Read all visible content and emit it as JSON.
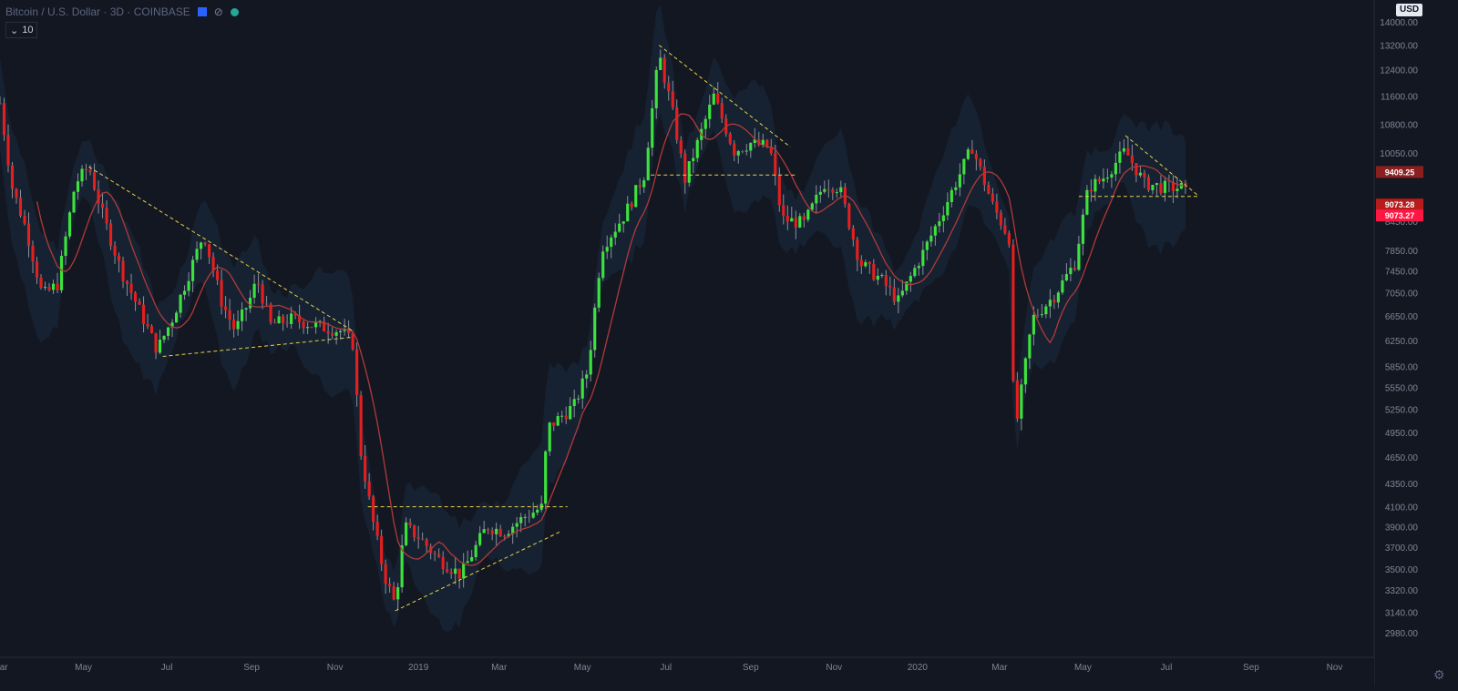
{
  "header": {
    "title": "Bitcoin / U.S. Dollar · 3D · COINBASE",
    "indicator_value": "10",
    "currency": "USD"
  },
  "colors": {
    "background": "#131722",
    "band": "#172433",
    "up": "#3ce33c",
    "down": "#e31f1f",
    "ma": "#b03a3a",
    "trendline": "#e6d24a",
    "axis_text": "#7f8596"
  },
  "chart_data": {
    "type": "candlestick",
    "title": "Bitcoin / U.S. Dollar · 3D · COINBASE",
    "y_scale": "log",
    "ylim": [
      2800,
      14800
    ],
    "y_ticks": [
      "14000.00",
      "13200.00",
      "12400.00",
      "11600.00",
      "10800.00",
      "10050.00",
      "9550.00",
      "8450.00",
      "7850.00",
      "7450.00",
      "7050.00",
      "6650.00",
      "6250.00",
      "5850.00",
      "5550.00",
      "5250.00",
      "4950.00",
      "4650.00",
      "4350.00",
      "4100.00",
      "3900.00",
      "3700.00",
      "3500.00",
      "3320.00",
      "3140.00",
      "2980.00"
    ],
    "x_labels": [
      {
        "label": "Mar",
        "date": "2018-03"
      },
      {
        "label": "May",
        "date": "2018-05"
      },
      {
        "label": "Jul",
        "date": "2018-07"
      },
      {
        "label": "Sep",
        "date": "2018-09"
      },
      {
        "label": "Nov",
        "date": "2018-11"
      },
      {
        "label": "2019",
        "date": "2019-01"
      },
      {
        "label": "Mar",
        "date": "2019-03"
      },
      {
        "label": "May",
        "date": "2019-05"
      },
      {
        "label": "Jul",
        "date": "2019-07"
      },
      {
        "label": "Sep",
        "date": "2019-09"
      },
      {
        "label": "Nov",
        "date": "2019-11"
      },
      {
        "label": "2020",
        "date": "2020-01"
      },
      {
        "label": "Mar",
        "date": "2020-03"
      },
      {
        "label": "May",
        "date": "2020-05"
      },
      {
        "label": "Jul",
        "date": "2020-07"
      },
      {
        "label": "Sep",
        "date": "2020-09"
      },
      {
        "label": "Nov",
        "date": "2020-11"
      }
    ],
    "x_range": [
      "2018-03-01",
      "2020-11-30"
    ],
    "close_path": [
      [
        "2018-03-01",
        11400
      ],
      [
        "2018-03-10",
        9200
      ],
      [
        "2018-03-20",
        8300
      ],
      [
        "2018-04-01",
        7000
      ],
      [
        "2018-04-12",
        7200
      ],
      [
        "2018-04-25",
        9300
      ],
      [
        "2018-05-05",
        9700
      ],
      [
        "2018-05-15",
        8600
      ],
      [
        "2018-05-28",
        7500
      ],
      [
        "2018-06-10",
        6800
      ],
      [
        "2018-06-24",
        6100
      ],
      [
        "2018-07-05",
        6600
      ],
      [
        "2018-07-20",
        7600
      ],
      [
        "2018-07-28",
        8200
      ],
      [
        "2018-08-10",
        6900
      ],
      [
        "2018-08-20",
        6400
      ],
      [
        "2018-09-01",
        7000
      ],
      [
        "2018-09-05",
        7300
      ],
      [
        "2018-09-15",
        6500
      ],
      [
        "2018-10-01",
        6600
      ],
      [
        "2018-10-15",
        6500
      ],
      [
        "2018-11-05",
        6400
      ],
      [
        "2018-11-14",
        6200
      ],
      [
        "2018-11-20",
        4700
      ],
      [
        "2018-11-28",
        4000
      ],
      [
        "2018-12-07",
        3450
      ],
      [
        "2018-12-15",
        3200
      ],
      [
        "2018-12-22",
        3900
      ],
      [
        "2019-01-01",
        3800
      ],
      [
        "2019-01-15",
        3600
      ],
      [
        "2019-02-01",
        3450
      ],
      [
        "2019-02-20",
        3900
      ],
      [
        "2019-03-05",
        3850
      ],
      [
        "2019-03-20",
        4000
      ],
      [
        "2019-04-02",
        4100
      ],
      [
        "2019-04-05",
        5000
      ],
      [
        "2019-04-25",
        5300
      ],
      [
        "2019-05-05",
        5800
      ],
      [
        "2019-05-15",
        7900
      ],
      [
        "2019-06-01",
        8600
      ],
      [
        "2019-06-15",
        9500
      ],
      [
        "2019-06-26",
        12900
      ],
      [
        "2019-07-05",
        11300
      ],
      [
        "2019-07-15",
        9400
      ],
      [
        "2019-08-05",
        11600
      ],
      [
        "2019-08-20",
        10100
      ],
      [
        "2019-09-01",
        10300
      ],
      [
        "2019-09-15",
        10200
      ],
      [
        "2019-09-24",
        8500
      ],
      [
        "2019-10-10",
        8400
      ],
      [
        "2019-10-25",
        9300
      ],
      [
        "2019-11-05",
        9200
      ],
      [
        "2019-11-20",
        7600
      ],
      [
        "2019-12-05",
        7300
      ],
      [
        "2019-12-18",
        6900
      ],
      [
        "2020-01-05",
        7800
      ],
      [
        "2020-01-20",
        8700
      ],
      [
        "2020-02-10",
        10200
      ],
      [
        "2020-02-25",
        8800
      ],
      [
        "2020-03-08",
        8100
      ],
      [
        "2020-03-12",
        4900
      ],
      [
        "2020-03-25",
        6600
      ],
      [
        "2020-04-10",
        7000
      ],
      [
        "2020-04-25",
        7600
      ],
      [
        "2020-05-05",
        9200
      ],
      [
        "2020-05-15",
        9400
      ],
      [
        "2020-06-01",
        10100
      ],
      [
        "2020-06-15",
        9300
      ],
      [
        "2020-07-01",
        9200
      ],
      [
        "2020-07-12",
        9200
      ],
      [
        "2020-07-16",
        9100
      ]
    ],
    "ma_period": 10,
    "trendlines": [
      {
        "from": [
          "2018-05-05",
          9700
        ],
        "to": [
          "2018-11-14",
          6400
        ]
      },
      {
        "from": [
          "2018-06-28",
          6000
        ],
        "to": [
          "2018-11-14",
          6300
        ]
      },
      {
        "from": [
          "2018-12-15",
          3150
        ],
        "to": [
          "2019-04-15",
          3850
        ]
      },
      {
        "from": [
          "2018-11-25",
          4100
        ],
        "to": [
          "2019-04-20",
          4100
        ]
      },
      {
        "from": [
          "2019-06-26",
          13200
        ],
        "to": [
          "2019-09-30",
          10200
        ]
      },
      {
        "from": [
          "2019-06-20",
          9500
        ],
        "to": [
          "2019-10-05",
          9500
        ]
      },
      {
        "from": [
          "2020-06-01",
          10500
        ],
        "to": [
          "2020-07-25",
          9000
        ]
      },
      {
        "from": [
          "2020-04-28",
          9000
        ],
        "to": [
          "2020-07-25",
          9000
        ]
      }
    ],
    "price_labels": [
      {
        "value": 9409.25,
        "text": "9409.25",
        "color": "#8b1f1f"
      },
      {
        "value": 9073.28,
        "text": "9073.28",
        "color": "#b71c1c"
      },
      {
        "value": 9073.27,
        "text": "9073.27",
        "color": "#ff1744"
      }
    ]
  }
}
